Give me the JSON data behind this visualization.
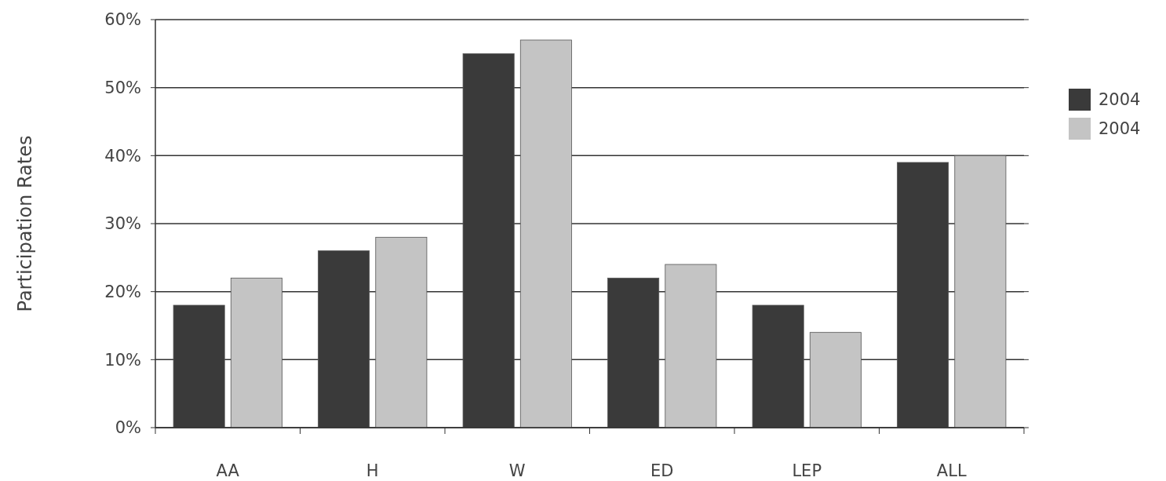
{
  "chart_data": {
    "type": "bar",
    "ylabel": "Participation Rates",
    "categories": [
      "AA",
      "H",
      "W",
      "ED",
      "LEP",
      "ALL"
    ],
    "series": [
      {
        "name": "2004",
        "color": "#3a3a3a",
        "values": [
          18,
          26,
          55,
          22,
          18,
          39
        ]
      },
      {
        "name": "2004",
        "color": "#c4c4c4",
        "values": [
          22,
          28,
          57,
          24,
          14,
          40
        ]
      }
    ],
    "ylim": [
      0,
      60
    ],
    "yticks": [
      {
        "value": 0,
        "label": "0%"
      },
      {
        "value": 10,
        "label": "10%"
      },
      {
        "value": 20,
        "label": "20%"
      },
      {
        "value": 30,
        "label": "30%"
      },
      {
        "value": 40,
        "label": "40%"
      },
      {
        "value": 50,
        "label": "50%"
      },
      {
        "value": 60,
        "label": "60%"
      }
    ],
    "grid": "y",
    "legend": "right"
  }
}
